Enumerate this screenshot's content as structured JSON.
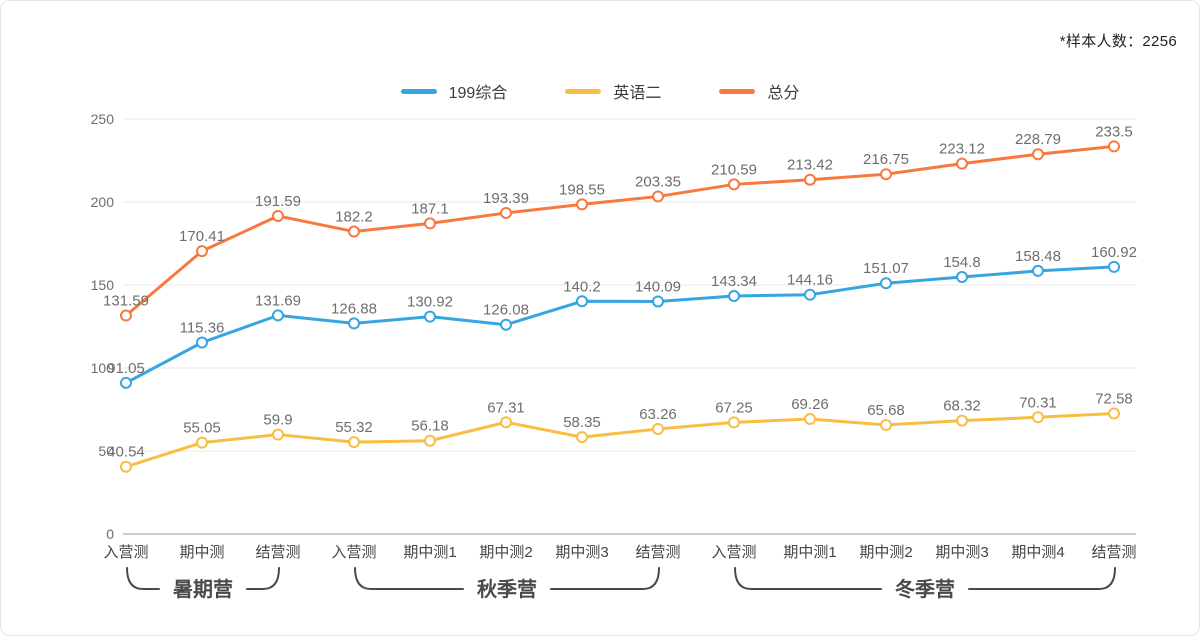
{
  "note": "*样本人数：2256",
  "chart_data": {
    "type": "line",
    "title": "",
    "xlabel": "",
    "ylabel": "",
    "ylim": [
      0,
      250
    ],
    "yticks": [
      0,
      50,
      100,
      150,
      200,
      250
    ],
    "grid": true,
    "legend_position": "top",
    "categories": [
      "入营测",
      "期中测",
      "结营测",
      "入营测",
      "期中测1",
      "期中测2",
      "期中测3",
      "结营测",
      "入营测",
      "期中测1",
      "期中测2",
      "期中测3",
      "期中测4",
      "结营测"
    ],
    "category_groups": [
      {
        "label": "暑期营",
        "start": 0,
        "end": 2
      },
      {
        "label": "秋季营",
        "start": 3,
        "end": 7
      },
      {
        "label": "冬季营",
        "start": 8,
        "end": 13
      }
    ],
    "series": [
      {
        "name": "199综合",
        "color": "#36a5e0",
        "values": [
          91.05,
          115.36,
          131.69,
          126.88,
          130.92,
          126.08,
          140.2,
          140.09,
          143.34,
          144.16,
          151.07,
          154.8,
          158.48,
          160.92
        ]
      },
      {
        "name": "英语二",
        "color": "#fabd43",
        "values": [
          40.54,
          55.05,
          59.9,
          55.32,
          56.18,
          67.31,
          58.35,
          63.26,
          67.25,
          69.26,
          65.68,
          68.32,
          70.31,
          72.58
        ]
      },
      {
        "name": "总分",
        "color": "#f8793f",
        "values": [
          131.59,
          170.41,
          191.59,
          182.2,
          187.1,
          193.39,
          198.55,
          203.35,
          210.59,
          213.42,
          216.75,
          223.12,
          228.79,
          233.5
        ]
      }
    ],
    "style": {
      "grid_color": "#e8e8e8",
      "axis_color": "#999999",
      "brace_color": "#4a4a4a",
      "point_fill": "#ffffff"
    }
  }
}
